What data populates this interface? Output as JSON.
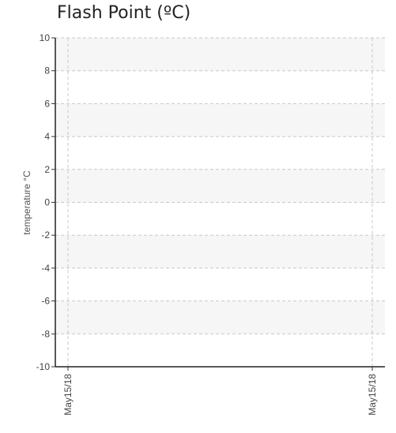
{
  "chart_data": {
    "type": "line",
    "title": "Flash Point (ºC)",
    "ylabel": "temperature °C",
    "xlabel": "",
    "ylim": [
      -10,
      10
    ],
    "y_ticks": [
      "10",
      "8",
      "6",
      "4",
      "2",
      "0",
      "-2",
      "-4",
      "-6",
      "-8",
      "-10"
    ],
    "x_ticks": [
      "May15/18",
      "May15/18"
    ],
    "grid": true,
    "series": []
  }
}
